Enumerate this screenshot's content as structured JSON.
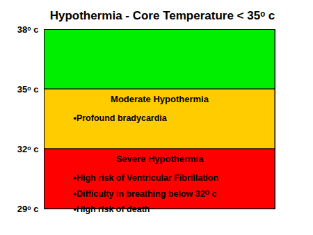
{
  "chart_data": {
    "type": "band",
    "title": "Hypothermia - Core Temperature < 35ᵒ c",
    "ylim": [
      29,
      38
    ],
    "yticks": [
      {
        "value": 38,
        "label": "38ᵒ c"
      },
      {
        "value": 35,
        "label": "35ᵒ c"
      },
      {
        "value": 32,
        "label": "32ᵒ c"
      },
      {
        "value": 29,
        "label": "29ᵒ c"
      }
    ],
    "tick_labels": "y",
    "bands": [
      {
        "name": null,
        "from": 35,
        "to": 38,
        "color": "#00ee00",
        "items": []
      },
      {
        "name": "Moderate Hypothermia",
        "from": 32,
        "to": 35,
        "color": "#ffcc00",
        "items": [
          "•Profound bradycardia"
        ]
      },
      {
        "name": "Severe Hypothermia",
        "from": 29,
        "to": 32,
        "color": "#ff0000",
        "items": [
          "•High risk of Ventricular Fibrillation",
          "•Difficulty in breathing below 32ᴼ c",
          "•High risk of death"
        ]
      }
    ]
  }
}
